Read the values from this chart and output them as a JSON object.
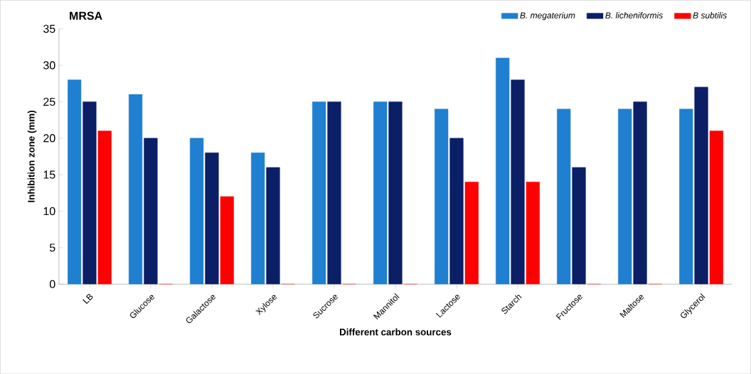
{
  "chart_data": {
    "type": "bar",
    "title": "MRSA",
    "xlabel": "Different carbon sources",
    "ylabel": "Inhibition zone (mm)",
    "categories": [
      "LB",
      "Glucose",
      "Galactose",
      "Xylose",
      "Sucrose",
      "Mannitol",
      "Lactose",
      "Starch",
      "Fructose",
      "Maltose",
      "Glycerol"
    ],
    "series": [
      {
        "name": "B. megaterium",
        "color": "#1f7fd0",
        "values": [
          28,
          26,
          20,
          18,
          25,
          25,
          24,
          31,
          24,
          24,
          24
        ]
      },
      {
        "name": "B. licheniformis",
        "color": "#0b1f66",
        "values": [
          25,
          20,
          18,
          16,
          25,
          25,
          20,
          28,
          16,
          25,
          27
        ]
      },
      {
        "name": "B subtilis",
        "color": "#ff0000",
        "values": [
          21,
          0,
          12,
          0,
          0,
          0,
          14,
          14,
          0,
          0,
          21
        ]
      }
    ],
    "ylim": [
      0,
      35
    ],
    "yticks": [
      0,
      5,
      10,
      15,
      20,
      25,
      30,
      35
    ],
    "legend": "top right",
    "grid": false
  }
}
